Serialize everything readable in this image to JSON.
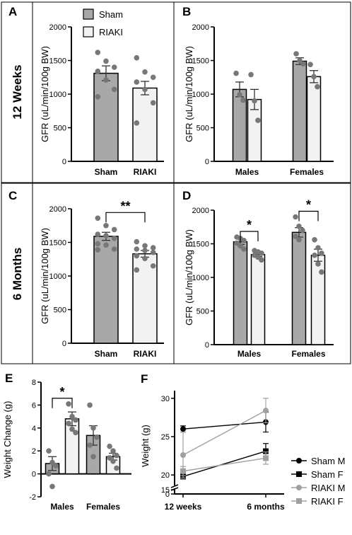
{
  "row_labels": [
    "12 Weeks",
    "6 Months"
  ],
  "legend": {
    "sham": "Sham",
    "riaki": "RIAKI"
  },
  "colors": {
    "sham": "#a8a8a8",
    "riaki": "#f2f2f2",
    "dots": "#777777",
    "line_gray": "#a0a0a0"
  },
  "chart_data": [
    {
      "panel": "A",
      "type": "bar",
      "categories": [
        "Sham",
        "RIAKI"
      ],
      "ylabel": "GFR (uL/min/100g BW)",
      "ylim": [
        0,
        2000
      ],
      "yticks": [
        0,
        500,
        1000,
        1500,
        2000
      ],
      "bars": [
        {
          "group": "sham",
          "value": 1310,
          "sem": 110,
          "points": [
            1620,
            1490,
            1400,
            1340,
            1210,
            1070,
            960
          ]
        },
        {
          "group": "riaki",
          "value": 1090,
          "sem": 100,
          "points": [
            1540,
            1330,
            1250,
            1180,
            1070,
            870,
            570
          ]
        }
      ],
      "significance": []
    },
    {
      "panel": "B",
      "type": "bar",
      "categories": [
        "Males",
        "Females"
      ],
      "ylabel": "GFR (uL/min/100g BW)",
      "ylim": [
        0,
        2000
      ],
      "yticks": [
        0,
        500,
        1000,
        1500,
        2000
      ],
      "bars": [
        {
          "group": "sham",
          "value": 1070,
          "sem": 110,
          "points": [
            1310,
            990,
            910
          ]
        },
        {
          "group": "riaki",
          "value": 920,
          "sem": 150,
          "points": [
            1290,
            900,
            610
          ]
        },
        {
          "group": "sham",
          "value": 1490,
          "sem": 50,
          "points": [
            1600,
            1500,
            1450
          ]
        },
        {
          "group": "riaki",
          "value": 1260,
          "sem": 90,
          "points": [
            1440,
            1260,
            1110
          ]
        }
      ],
      "significance": []
    },
    {
      "panel": "C",
      "type": "bar",
      "categories": [
        "Sham",
        "RIAKI"
      ],
      "ylabel": "GFR (uL/min/100g BW)",
      "ylim": [
        0,
        2000
      ],
      "yticks": [
        0,
        500,
        1000,
        1500,
        2000
      ],
      "bars": [
        {
          "group": "sham",
          "value": 1590,
          "sem": 60,
          "points": [
            1860,
            1750,
            1690,
            1620,
            1600,
            1560,
            1480,
            1460,
            1400,
            1390
          ]
        },
        {
          "group": "riaki",
          "value": 1330,
          "sem": 50,
          "points": [
            1510,
            1450,
            1420,
            1400,
            1380,
            1350,
            1300,
            1260,
            1150,
            1090
          ]
        }
      ],
      "significance": [
        {
          "from": 0,
          "to": 1,
          "label": "**"
        }
      ]
    },
    {
      "panel": "D",
      "type": "bar",
      "categories": [
        "Males",
        "Females"
      ],
      "ylabel": "GFR (uL/min/100g BW)",
      "ylim": [
        0,
        2000
      ],
      "yticks": [
        0,
        500,
        1000,
        1500,
        2000
      ],
      "bars": [
        {
          "group": "sham",
          "value": 1530,
          "sem": 40,
          "points": [
            1600,
            1580,
            1550,
            1510,
            1470,
            1420
          ]
        },
        {
          "group": "riaki",
          "value": 1340,
          "sem": 30,
          "points": [
            1400,
            1380,
            1360,
            1330,
            1300,
            1260
          ]
        },
        {
          "group": "sham",
          "value": 1670,
          "sem": 70,
          "points": [
            1900,
            1760,
            1700,
            1610,
            1560
          ]
        },
        {
          "group": "riaki",
          "value": 1330,
          "sem": 90,
          "points": [
            1560,
            1440,
            1360,
            1330,
            1200,
            1080
          ]
        }
      ],
      "significance": [
        {
          "from": 0,
          "to": 1,
          "label": "*"
        },
        {
          "from": 2,
          "to": 3,
          "label": "*"
        }
      ]
    },
    {
      "panel": "E",
      "type": "bar",
      "categories": [
        "Males",
        "Females"
      ],
      "ylabel": "Weight Change (g)",
      "ylim": [
        -2,
        8
      ],
      "yticks": [
        -2,
        0,
        2,
        4,
        6,
        8
      ],
      "bars": [
        {
          "group": "sham",
          "value": 0.9,
          "sem": 0.6,
          "points": [
            2.0,
            1.0,
            0.7,
            0.0,
            -1.1
          ]
        },
        {
          "group": "riaki",
          "value": 4.8,
          "sem": 0.6,
          "points": [
            6.1,
            5.0,
            4.7,
            4.4,
            3.9,
            3.6
          ]
        },
        {
          "group": "sham",
          "value": 3.35,
          "sem": 0.85,
          "points": [
            6.0,
            4.0,
            3.2,
            2.5,
            1.5
          ]
        },
        {
          "group": "riaki",
          "value": 1.5,
          "sem": 0.3,
          "points": [
            2.4,
            2.0,
            1.6,
            1.4,
            1.1,
            0.5
          ]
        }
      ],
      "significance": [
        {
          "from": 0,
          "to": 1,
          "label": "*"
        }
      ]
    },
    {
      "panel": "F",
      "type": "line",
      "x": [
        "12 weeks",
        "6 months"
      ],
      "ylabel": "Weight (g)",
      "yticks": [
        0,
        15,
        20,
        25,
        30
      ],
      "axis_break": [
        15,
        19
      ],
      "series": [
        {
          "name": "Sham M",
          "marker": "circle",
          "color": "#000000",
          "values": [
            26.0,
            26.9
          ],
          "errors": [
            0.4,
            1.3
          ]
        },
        {
          "name": "Sham F",
          "marker": "square",
          "color": "#000000",
          "values": [
            19.8,
            23.1
          ],
          "errors": [
            0.3,
            1.0
          ]
        },
        {
          "name": "RIAKI M",
          "marker": "circle",
          "color": "#a0a0a0",
          "values": [
            22.6,
            28.4
          ],
          "errors": [
            3.0,
            1.6
          ]
        },
        {
          "name": "RIAKI F",
          "marker": "square",
          "color": "#a0a0a0",
          "values": [
            20.5,
            22.2
          ],
          "errors": [
            0.6,
            0.8
          ]
        }
      ]
    }
  ]
}
